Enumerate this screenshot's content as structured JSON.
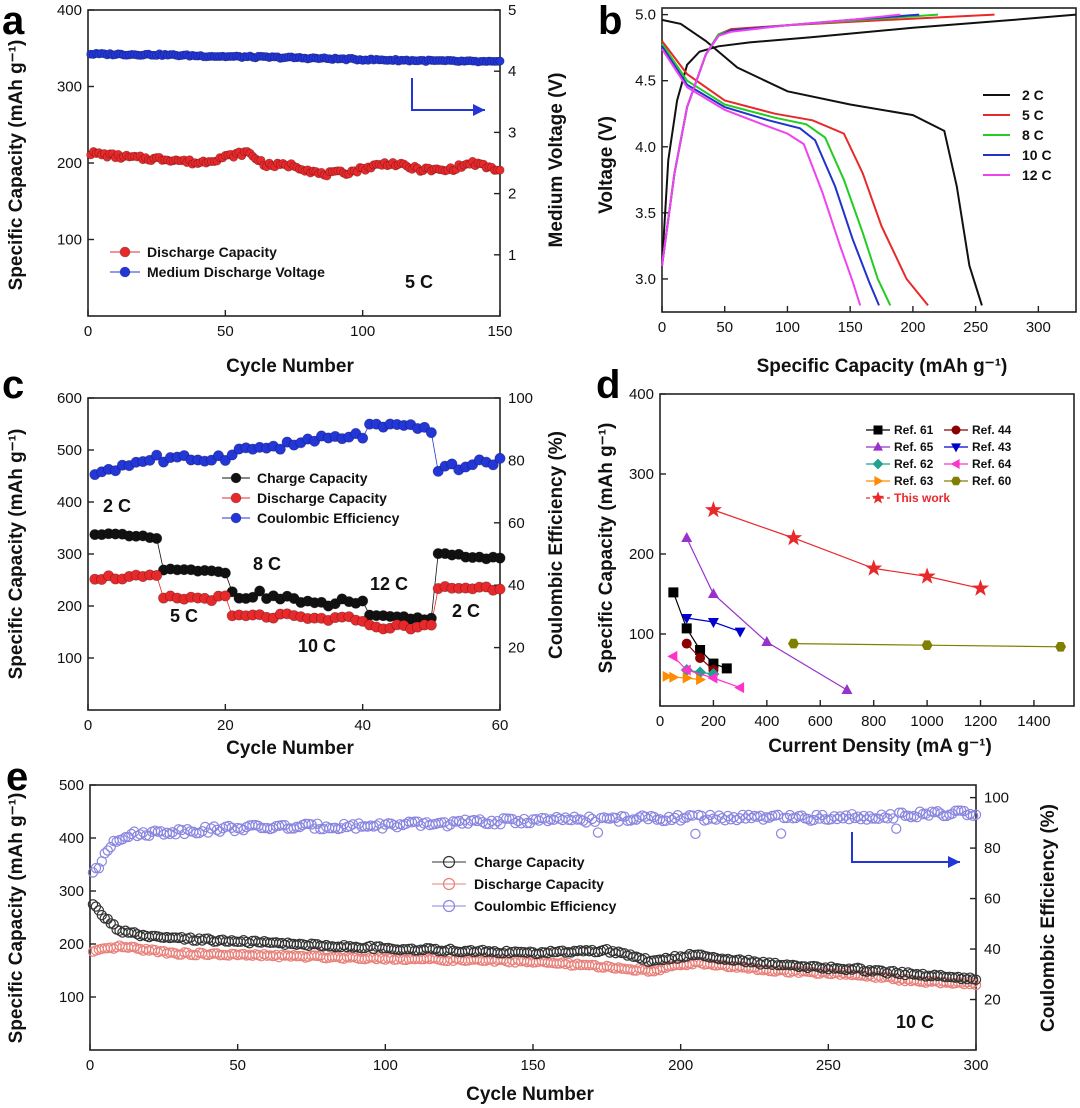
{
  "chart_data": [
    {
      "panel": "a",
      "type": "scatter",
      "xlabel": "Cycle Number",
      "ylabel": "Specific Capacity (mAh g⁻¹)",
      "y2label": "Medium Voltage (V)",
      "xlim": [
        0,
        150
      ],
      "ylim": [
        0,
        400
      ],
      "y2lim": [
        0,
        5
      ],
      "xticks": [
        0,
        50,
        100,
        150
      ],
      "yticks": [
        100,
        200,
        300,
        400
      ],
      "y2ticks": [
        1,
        2,
        3,
        4,
        5
      ],
      "annotation": "5 C",
      "legend": [
        "Discharge Capacity",
        "Medium Discharge Voltage"
      ],
      "series": [
        {
          "name": "Discharge Capacity",
          "color": "#e8292b",
          "axis": "left",
          "x": [
            1,
            10,
            20,
            30,
            40,
            50,
            58,
            65,
            75,
            85,
            95,
            105,
            110,
            120,
            130,
            140,
            150
          ],
          "y": [
            213,
            209,
            206,
            205,
            200,
            208,
            214,
            197,
            197,
            185,
            188,
            197,
            200,
            192,
            190,
            200,
            190
          ]
        },
        {
          "name": "Medium Discharge Voltage",
          "color": "#2336d8",
          "axis": "right",
          "x": [
            1,
            25,
            50,
            75,
            100,
            125,
            150
          ],
          "y": [
            4.28,
            4.27,
            4.24,
            4.22,
            4.19,
            4.17,
            4.15
          ]
        }
      ]
    },
    {
      "panel": "b",
      "type": "line",
      "xlabel": "Specific Capacity (mAh g⁻¹)",
      "ylabel": "Voltage (V)",
      "xlim": [
        0,
        330
      ],
      "ylim": [
        2.75,
        5.05
      ],
      "xticks": [
        0,
        50,
        100,
        150,
        200,
        250,
        300
      ],
      "yticks": [
        3.0,
        3.5,
        4.0,
        4.5,
        5.0
      ],
      "series": [
        {
          "name": "2 C",
          "color": "#111111",
          "charge_x": [
            0,
            5,
            12,
            20,
            30,
            45,
            70,
            120,
            200,
            280,
            330
          ],
          "charge_y": [
            3.1,
            3.9,
            4.35,
            4.62,
            4.72,
            4.76,
            4.79,
            4.83,
            4.9,
            4.96,
            5.0
          ],
          "discharge_x": [
            0,
            15,
            35,
            60,
            100,
            150,
            200,
            225,
            235,
            245,
            255
          ],
          "discharge_y": [
            4.96,
            4.93,
            4.8,
            4.6,
            4.42,
            4.32,
            4.24,
            4.12,
            3.7,
            3.1,
            2.8
          ]
        },
        {
          "name": "5 C",
          "color": "#e8292b",
          "charge_x": [
            0,
            10,
            20,
            35,
            45,
            55,
            100,
            180,
            265
          ],
          "charge_y": [
            3.1,
            3.8,
            4.3,
            4.7,
            4.85,
            4.89,
            4.92,
            4.96,
            5.0
          ],
          "discharge_x": [
            0,
            20,
            50,
            90,
            120,
            145,
            160,
            175,
            195,
            212
          ],
          "discharge_y": [
            4.8,
            4.55,
            4.35,
            4.25,
            4.2,
            4.1,
            3.8,
            3.4,
            3.0,
            2.8
          ]
        },
        {
          "name": "8 C",
          "color": "#22cc22",
          "charge_x": [
            0,
            10,
            20,
            35,
            45,
            55,
            100,
            160,
            220
          ],
          "charge_y": [
            3.1,
            3.8,
            4.3,
            4.7,
            4.85,
            4.88,
            4.92,
            4.96,
            5.0
          ],
          "discharge_x": [
            0,
            20,
            50,
            90,
            115,
            130,
            145,
            160,
            172,
            182
          ],
          "discharge_y": [
            4.78,
            4.5,
            4.32,
            4.22,
            4.17,
            4.07,
            3.75,
            3.35,
            3.0,
            2.8
          ]
        },
        {
          "name": "10 C",
          "color": "#2233cc",
          "charge_x": [
            0,
            10,
            20,
            35,
            45,
            55,
            100,
            150,
            205
          ],
          "charge_y": [
            3.1,
            3.8,
            4.3,
            4.7,
            4.84,
            4.88,
            4.92,
            4.96,
            5.0
          ],
          "discharge_x": [
            0,
            20,
            50,
            85,
            110,
            122,
            138,
            152,
            165,
            173
          ],
          "discharge_y": [
            4.76,
            4.47,
            4.3,
            4.2,
            4.14,
            4.05,
            3.7,
            3.3,
            2.98,
            2.8
          ]
        },
        {
          "name": "12 C",
          "color": "#ee44ee",
          "charge_x": [
            0,
            10,
            20,
            35,
            45,
            55,
            100,
            150,
            190
          ],
          "charge_y": [
            3.1,
            3.8,
            4.3,
            4.7,
            4.84,
            4.87,
            4.92,
            4.96,
            5.0
          ],
          "discharge_x": [
            0,
            20,
            50,
            80,
            100,
            113,
            128,
            142,
            152,
            158
          ],
          "discharge_y": [
            4.74,
            4.45,
            4.28,
            4.17,
            4.1,
            4.02,
            3.65,
            3.25,
            2.98,
            2.8
          ]
        }
      ]
    },
    {
      "panel": "c",
      "type": "scatter",
      "xlabel": "Cycle Number",
      "ylabel": "Specific Capacity (mAh g⁻¹)",
      "y2label": "Coulombic Efficiency (%)",
      "xlim": [
        0,
        60
      ],
      "ylim": [
        0,
        600
      ],
      "y2lim": [
        0,
        100
      ],
      "xticks": [
        0,
        20,
        40,
        60
      ],
      "yticks": [
        100,
        200,
        300,
        400,
        500,
        600
      ],
      "y2ticks": [
        20,
        40,
        60,
        80,
        100
      ],
      "annotations": [
        "2 C",
        "5 C",
        "8 C",
        "10 C",
        "12 C",
        "2 C"
      ],
      "legend": [
        "Charge Capacity",
        "Discharge Capacity",
        "Coulombic Efficiency"
      ],
      "rate_segments": [
        {
          "start": 1,
          "end": 10,
          "charge": [
            340,
            330
          ],
          "discharge": 255,
          "ce": [
            76,
            81
          ]
        },
        {
          "start": 11,
          "end": 20,
          "charge": [
            270,
            265
          ],
          "discharge": 215,
          "ce": [
            80,
            81
          ]
        },
        {
          "start": 21,
          "end": 30,
          "charge": [
            225,
            215
          ],
          "discharge": 180,
          "ce": [
            83,
            85
          ]
        },
        {
          "start": 31,
          "end": 40,
          "charge": [
            200,
            210
          ],
          "discharge": 175,
          "ce": [
            86,
            88
          ]
        },
        {
          "start": 41,
          "end": 50,
          "charge": [
            180,
            175
          ],
          "discharge": 160,
          "ce": [
            91,
            90
          ]
        },
        {
          "start": 51,
          "end": 60,
          "charge": [
            302,
            290
          ],
          "discharge": 235,
          "ce": [
            77,
            80
          ]
        }
      ],
      "colors": {
        "charge": "#111111",
        "discharge": "#e8292b",
        "ce": "#2336d8"
      }
    },
    {
      "panel": "d",
      "type": "line",
      "xlabel": "Current Density (mA g⁻¹)",
      "ylabel": "Specific Capacity (mAh g⁻¹)",
      "xlim": [
        0,
        1550
      ],
      "ylim": [
        10,
        400
      ],
      "xticks": [
        0,
        200,
        400,
        600,
        800,
        1000,
        1200,
        1400
      ],
      "yticks": [
        100,
        200,
        300,
        400
      ],
      "series": [
        {
          "name": "Ref. 61",
          "color": "#000000",
          "marker": "square",
          "x": [
            50,
            100,
            150,
            200,
            250
          ],
          "y": [
            152,
            107,
            80,
            63,
            57
          ]
        },
        {
          "name": "Ref. 44",
          "color": "#8b0000",
          "marker": "circle",
          "x": [
            100,
            150,
            200
          ],
          "y": [
            88,
            70,
            55
          ]
        },
        {
          "name": "Ref. 65",
          "color": "#9932cc",
          "marker": "triangle-up",
          "x": [
            100,
            200,
            400,
            700
          ],
          "y": [
            220,
            150,
            90,
            30
          ]
        },
        {
          "name": "Ref. 43",
          "color": "#0000cd",
          "marker": "triangle-down",
          "x": [
            100,
            200,
            300
          ],
          "y": [
            120,
            115,
            103
          ]
        },
        {
          "name": "Ref. 62",
          "color": "#20a090",
          "marker": "diamond",
          "x": [
            100,
            150,
            200
          ],
          "y": [
            55,
            52,
            50
          ]
        },
        {
          "name": "Ref. 64",
          "color": "#ff33cc",
          "marker": "triangle-left",
          "x": [
            50,
            100,
            200,
            300
          ],
          "y": [
            72,
            55,
            45,
            33
          ]
        },
        {
          "name": "Ref. 63",
          "color": "#ff8c00",
          "marker": "triangle-right",
          "x": [
            25,
            50,
            100,
            150
          ],
          "y": [
            47,
            46,
            45,
            43
          ]
        },
        {
          "name": "Ref. 60",
          "color": "#808000",
          "marker": "hexagon",
          "x": [
            500,
            1000,
            1500
          ],
          "y": [
            88,
            86,
            84
          ]
        },
        {
          "name": "This work",
          "color": "#e8292b",
          "marker": "star",
          "x": [
            200,
            500,
            800,
            1000,
            1200
          ],
          "y": [
            255,
            220,
            182,
            172,
            157
          ]
        }
      ]
    },
    {
      "panel": "e",
      "type": "scatter",
      "xlabel": "Cycle Number",
      "ylabel": "Specific Capacity (mAh g⁻¹)",
      "y2label": "Coulombic Efficiency (%)",
      "xlim": [
        0,
        300
      ],
      "ylim": [
        0,
        500
      ],
      "y2lim": [
        0,
        105
      ],
      "xticks": [
        0,
        50,
        100,
        150,
        200,
        250,
        300
      ],
      "yticks": [
        100,
        200,
        300,
        400,
        500
      ],
      "y2ticks": [
        20,
        40,
        60,
        80,
        100
      ],
      "annotation": "10 C",
      "legend": [
        "Charge Capacity",
        "Discharge Capacity",
        "Coulombic Efficiency"
      ],
      "series": [
        {
          "name": "Charge Capacity",
          "color": "#333333",
          "axis": "left",
          "x": [
            1,
            3,
            6,
            10,
            20,
            50,
            100,
            150,
            175,
            190,
            205,
            230,
            260,
            280,
            300
          ],
          "y": [
            275,
            262,
            245,
            225,
            213,
            205,
            192,
            183,
            188,
            168,
            180,
            162,
            152,
            142,
            135
          ]
        },
        {
          "name": "Discharge Capacity",
          "color": "#e8807a",
          "axis": "left",
          "x": [
            1,
            10,
            30,
            100,
            150,
            190,
            205,
            230,
            260,
            280,
            300
          ],
          "y": [
            185,
            195,
            182,
            173,
            167,
            150,
            165,
            150,
            142,
            130,
            125
          ]
        },
        {
          "name": "Coulombic Efficiency",
          "color": "#8a86e0",
          "axis": "right",
          "x": [
            1,
            3,
            5,
            8,
            12,
            20,
            50,
            100,
            150,
            200,
            250,
            300
          ],
          "y": [
            70,
            72,
            78,
            83,
            85,
            86,
            88,
            89,
            91,
            92,
            92,
            94
          ]
        }
      ]
    }
  ]
}
